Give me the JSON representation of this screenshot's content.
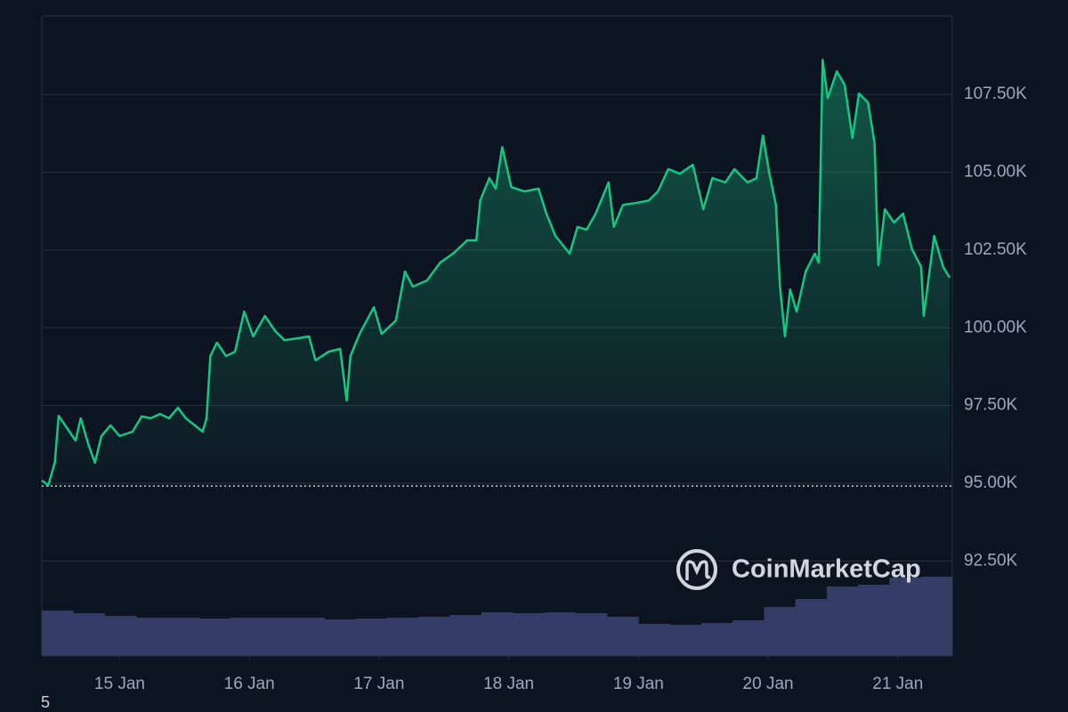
{
  "chart_data": {
    "type": "line",
    "color": "#16c784",
    "x": [
      14.4,
      14.45,
      14.5,
      14.53,
      14.59,
      14.66,
      14.7,
      14.76,
      14.81,
      14.86,
      14.93,
      15.0,
      15.1,
      15.17,
      15.24,
      15.31,
      15.38,
      15.45,
      15.51,
      15.58,
      15.64,
      15.67,
      15.7,
      15.75,
      15.82,
      15.89,
      15.96,
      16.03,
      16.12,
      16.2,
      16.27,
      16.37,
      16.46,
      16.51,
      16.61,
      16.7,
      16.75,
      16.78,
      16.85,
      16.96,
      17.02,
      17.13,
      17.2,
      17.26,
      17.37,
      17.47,
      17.57,
      17.68,
      17.75,
      17.78,
      17.85,
      17.9,
      17.95,
      18.02,
      18.12,
      18.23,
      18.29,
      18.36,
      18.47,
      18.53,
      18.6,
      18.67,
      18.77,
      18.81,
      18.88,
      18.98,
      19.08,
      19.15,
      19.23,
      19.32,
      19.42,
      19.5,
      19.57,
      19.67,
      19.74,
      19.84,
      19.91,
      19.96,
      20.01,
      20.06,
      20.09,
      20.13,
      20.17,
      20.22,
      20.29,
      20.36,
      20.39,
      20.42,
      20.46,
      20.53,
      20.59,
      20.65,
      20.7,
      20.77,
      20.82,
      20.85,
      20.9,
      20.97,
      21.04,
      21.11,
      21.18,
      21.2,
      21.28,
      21.35,
      21.4
    ],
    "values": [
      95090,
      94940,
      95660,
      97170,
      96800,
      96370,
      97090,
      96230,
      95660,
      96520,
      96860,
      96520,
      96660,
      97150,
      97090,
      97230,
      97090,
      97430,
      97090,
      96860,
      96660,
      97090,
      99090,
      99520,
      99090,
      99230,
      100520,
      99720,
      100380,
      99890,
      99600,
      99660,
      99720,
      98950,
      99230,
      99320,
      97660,
      99090,
      99800,
      100660,
      99800,
      100230,
      101810,
      101320,
      101520,
      102090,
      102380,
      102810,
      102810,
      104090,
      104810,
      104470,
      105810,
      104520,
      104380,
      104470,
      103670,
      102950,
      102380,
      103240,
      103150,
      103670,
      104670,
      103240,
      103950,
      104010,
      104090,
      104380,
      105100,
      104950,
      105240,
      103810,
      104810,
      104670,
      105100,
      104670,
      104810,
      106180,
      104950,
      103950,
      101380,
      99720,
      101230,
      100520,
      101810,
      102380,
      102090,
      108610,
      107380,
      108240,
      107810,
      106100,
      107530,
      107240,
      105950,
      102010,
      103810,
      103380,
      103670,
      102520,
      101950,
      100380,
      102950,
      101950,
      101610
    ],
    "reference_line": 94910,
    "volume": {
      "color": "#343d66",
      "x": [
        14.4,
        14.65,
        14.9,
        15.15,
        15.4,
        15.65,
        15.9,
        16.15,
        16.4,
        16.65,
        16.9,
        17.15,
        17.4,
        17.65,
        17.9,
        18.15,
        18.4,
        18.65,
        18.9,
        19.15,
        19.4,
        19.65,
        19.9,
        20.15,
        20.4,
        20.65,
        20.9,
        21.15,
        21.4
      ],
      "values": [
        51,
        48,
        45,
        43,
        43,
        42,
        43,
        43,
        43,
        41,
        42,
        43,
        44,
        46,
        49,
        48,
        49,
        48,
        44,
        36,
        35,
        37,
        40,
        55,
        64,
        78,
        80,
        88,
        89
      ]
    },
    "xlim": [
      14.4,
      21.42
    ],
    "xticks": [
      {
        "value": 15,
        "label": "15 Jan"
      },
      {
        "value": 16,
        "label": "16 Jan"
      },
      {
        "value": 17,
        "label": "17 Jan"
      },
      {
        "value": 18,
        "label": "18 Jan"
      },
      {
        "value": 19,
        "label": "19 Jan"
      },
      {
        "value": 20,
        "label": "20 Jan"
      },
      {
        "value": 21,
        "label": "21 Jan"
      }
    ],
    "ylim": [
      89450,
      110020
    ],
    "yticks": [
      {
        "value": 92500,
        "label": "92.50K"
      },
      {
        "value": 95000,
        "label": "95.00K"
      },
      {
        "value": 97500,
        "label": "97.50K"
      },
      {
        "value": 100000,
        "label": "100.00K"
      },
      {
        "value": 102500,
        "label": "102.50K"
      },
      {
        "value": 105000,
        "label": "105.00K"
      },
      {
        "value": 107500,
        "label": "107.50K"
      }
    ],
    "grid": true,
    "watermark": "CoinMarketCap",
    "footnote": "5"
  }
}
